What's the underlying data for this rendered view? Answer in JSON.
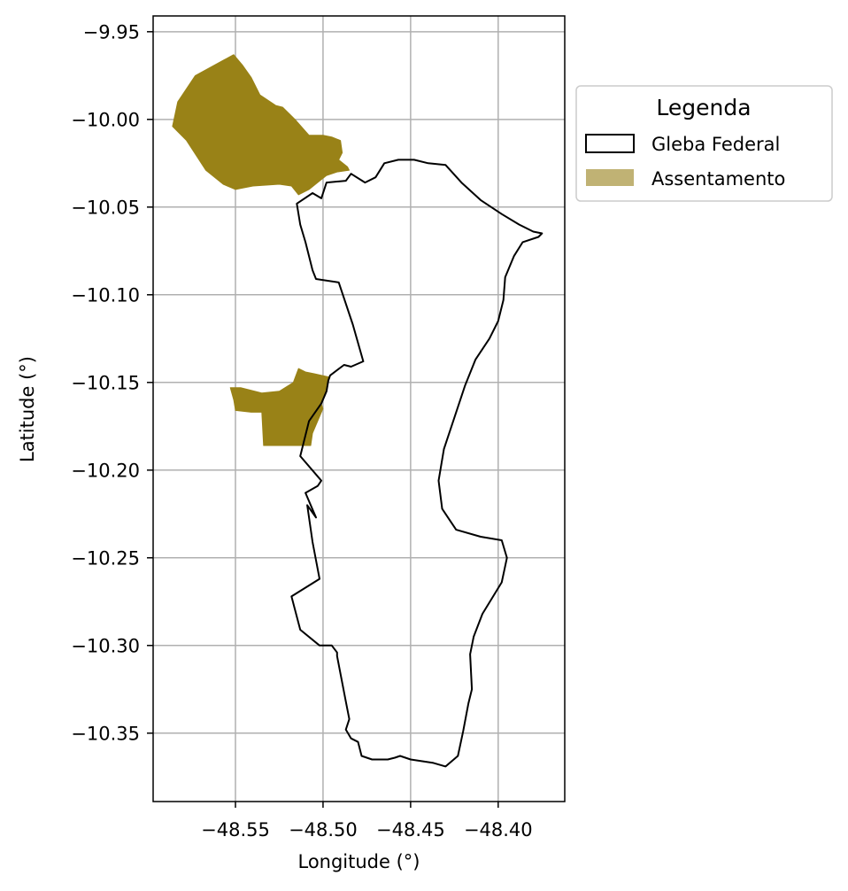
{
  "chart_data": {
    "type": "map",
    "xlabel": "Longitude (°)",
    "ylabel": "Latitude (°)",
    "xlim": [
      -48.597,
      -48.362
    ],
    "ylim": [
      -10.389,
      -9.941
    ],
    "x_ticks": [
      -48.55,
      -48.5,
      -48.45,
      -48.4
    ],
    "x_tick_labels": [
      "−48.55",
      "−48.50",
      "−48.45",
      "−48.40"
    ],
    "y_ticks": [
      -9.95,
      -10.0,
      -10.05,
      -10.1,
      -10.15,
      -10.2,
      -10.25,
      -10.3,
      -10.35
    ],
    "y_tick_labels": [
      "−9.95",
      "−10.00",
      "−10.05",
      "−10.10",
      "−10.15",
      "−10.20",
      "−10.25",
      "−10.30",
      "−10.35"
    ],
    "grid": true,
    "legend": {
      "title": "Legenda",
      "placement": "outside-upper-right",
      "entries": [
        {
          "label": "Gleba Federal",
          "style": "outline"
        },
        {
          "label": "Assentamento",
          "style": "fill"
        }
      ]
    },
    "colors": {
      "assentamento_fill": "#998217",
      "legend_patch": "#c0b274",
      "gleba_stroke": "#000000",
      "grid": "#b0b0b0"
    },
    "layers": [
      {
        "name": "Gleba Federal",
        "type": "polygon-outline",
        "rings": [
          [
            [
              -48.515,
              -10.048
            ],
            [
              -48.506,
              -10.042
            ],
            [
              -48.501,
              -10.045
            ],
            [
              -48.498,
              -10.036
            ],
            [
              -48.487,
              -10.035
            ],
            [
              -48.484,
              -10.031
            ],
            [
              -48.476,
              -10.036
            ],
            [
              -48.47,
              -10.033
            ],
            [
              -48.465,
              -10.025
            ],
            [
              -48.457,
              -10.023
            ],
            [
              -48.448,
              -10.023
            ],
            [
              -48.44,
              -10.025
            ],
            [
              -48.43,
              -10.026
            ],
            [
              -48.421,
              -10.036
            ],
            [
              -48.41,
              -10.046
            ],
            [
              -48.398,
              -10.054
            ],
            [
              -48.388,
              -10.06
            ],
            [
              -48.38,
              -10.064
            ],
            [
              -48.375,
              -10.065
            ],
            [
              -48.377,
              -10.067
            ],
            [
              -48.386,
              -10.07
            ],
            [
              -48.391,
              -10.078
            ],
            [
              -48.396,
              -10.09
            ],
            [
              -48.397,
              -10.103
            ],
            [
              -48.4,
              -10.115
            ],
            [
              -48.405,
              -10.125
            ],
            [
              -48.413,
              -10.137
            ],
            [
              -48.419,
              -10.152
            ],
            [
              -48.427,
              -10.176
            ],
            [
              -48.431,
              -10.188
            ],
            [
              -48.434,
              -10.206
            ],
            [
              -48.432,
              -10.222
            ],
            [
              -48.424,
              -10.234
            ],
            [
              -48.41,
              -10.238
            ],
            [
              -48.398,
              -10.24
            ],
            [
              -48.395,
              -10.25
            ],
            [
              -48.398,
              -10.264
            ],
            [
              -48.409,
              -10.282
            ],
            [
              -48.414,
              -10.295
            ],
            [
              -48.416,
              -10.305
            ],
            [
              -48.415,
              -10.325
            ],
            [
              -48.417,
              -10.333
            ],
            [
              -48.42,
              -10.349
            ],
            [
              -48.423,
              -10.363
            ],
            [
              -48.43,
              -10.369
            ],
            [
              -48.437,
              -10.367
            ],
            [
              -48.45,
              -10.365
            ],
            [
              -48.456,
              -10.363
            ],
            [
              -48.459,
              -10.364
            ],
            [
              -48.463,
              -10.365
            ],
            [
              -48.472,
              -10.365
            ],
            [
              -48.478,
              -10.363
            ],
            [
              -48.48,
              -10.355
            ],
            [
              -48.484,
              -10.353
            ],
            [
              -48.487,
              -10.348
            ],
            [
              -48.485,
              -10.342
            ],
            [
              -48.487,
              -10.332
            ],
            [
              -48.492,
              -10.306
            ],
            [
              -48.492,
              -10.304
            ],
            [
              -48.495,
              -10.3
            ],
            [
              -48.502,
              -10.3
            ],
            [
              -48.513,
              -10.291
            ],
            [
              -48.518,
              -10.272
            ],
            [
              -48.502,
              -10.262
            ],
            [
              -48.506,
              -10.241
            ],
            [
              -48.509,
              -10.22
            ],
            [
              -48.504,
              -10.227
            ],
            [
              -48.51,
              -10.213
            ],
            [
              -48.503,
              -10.209
            ],
            [
              -48.501,
              -10.206
            ],
            [
              -48.513,
              -10.192
            ],
            [
              -48.508,
              -10.172
            ],
            [
              -48.501,
              -10.162
            ],
            [
              -48.498,
              -10.155
            ],
            [
              -48.497,
              -10.149
            ],
            [
              -48.496,
              -10.146
            ],
            [
              -48.488,
              -10.14
            ],
            [
              -48.484,
              -10.141
            ],
            [
              -48.477,
              -10.138
            ],
            [
              -48.483,
              -10.117
            ],
            [
              -48.491,
              -10.093
            ],
            [
              -48.504,
              -10.091
            ],
            [
              -48.506,
              -10.086
            ],
            [
              -48.508,
              -10.078
            ],
            [
              -48.51,
              -10.07
            ],
            [
              -48.513,
              -10.06
            ],
            [
              -48.515,
              -10.048
            ]
          ]
        ]
      },
      {
        "name": "Assentamento",
        "type": "polygon-fill",
        "rings": [
          [
            [
              -48.551,
              -9.963
            ],
            [
              -48.546,
              -9.969
            ],
            [
              -48.541,
              -9.976
            ],
            [
              -48.536,
              -9.986
            ],
            [
              -48.527,
              -9.992
            ],
            [
              -48.523,
              -9.993
            ],
            [
              -48.516,
              -10.0
            ],
            [
              -48.508,
              -10.009
            ],
            [
              -48.5,
              -10.009
            ],
            [
              -48.495,
              -10.01
            ],
            [
              -48.49,
              -10.012
            ],
            [
              -48.489,
              -10.019
            ],
            [
              -48.491,
              -10.023
            ],
            [
              -48.486,
              -10.027
            ],
            [
              -48.485,
              -10.029
            ],
            [
              -48.492,
              -10.03
            ],
            [
              -48.498,
              -10.032
            ],
            [
              -48.503,
              -10.036
            ],
            [
              -48.508,
              -10.04
            ],
            [
              -48.514,
              -10.043
            ],
            [
              -48.518,
              -10.038
            ],
            [
              -48.525,
              -10.037
            ],
            [
              -48.54,
              -10.038
            ],
            [
              -48.55,
              -10.04
            ],
            [
              -48.557,
              -10.037
            ],
            [
              -48.567,
              -10.029
            ],
            [
              -48.578,
              -10.012
            ],
            [
              -48.586,
              -10.004
            ],
            [
              -48.583,
              -9.99
            ],
            [
              -48.573,
              -9.975
            ],
            [
              -48.551,
              -9.963
            ]
          ],
          [
            [
              -48.514,
              -10.142
            ],
            [
              -48.51,
              -10.144
            ],
            [
              -48.505,
              -10.145
            ],
            [
              -48.496,
              -10.147
            ],
            [
              -48.497,
              -10.149
            ],
            [
              -48.498,
              -10.155
            ],
            [
              -48.501,
              -10.162
            ],
            [
              -48.5,
              -10.165
            ],
            [
              -48.506,
              -10.179
            ],
            [
              -48.507,
              -10.186
            ],
            [
              -48.534,
              -10.186
            ],
            [
              -48.535,
              -10.167
            ],
            [
              -48.541,
              -10.167
            ],
            [
              -48.55,
              -10.166
            ],
            [
              -48.551,
              -10.16
            ],
            [
              -48.553,
              -10.153
            ],
            [
              -48.547,
              -10.153
            ],
            [
              -48.535,
              -10.156
            ],
            [
              -48.525,
              -10.155
            ],
            [
              -48.517,
              -10.15
            ],
            [
              -48.514,
              -10.142
            ]
          ]
        ]
      }
    ]
  }
}
